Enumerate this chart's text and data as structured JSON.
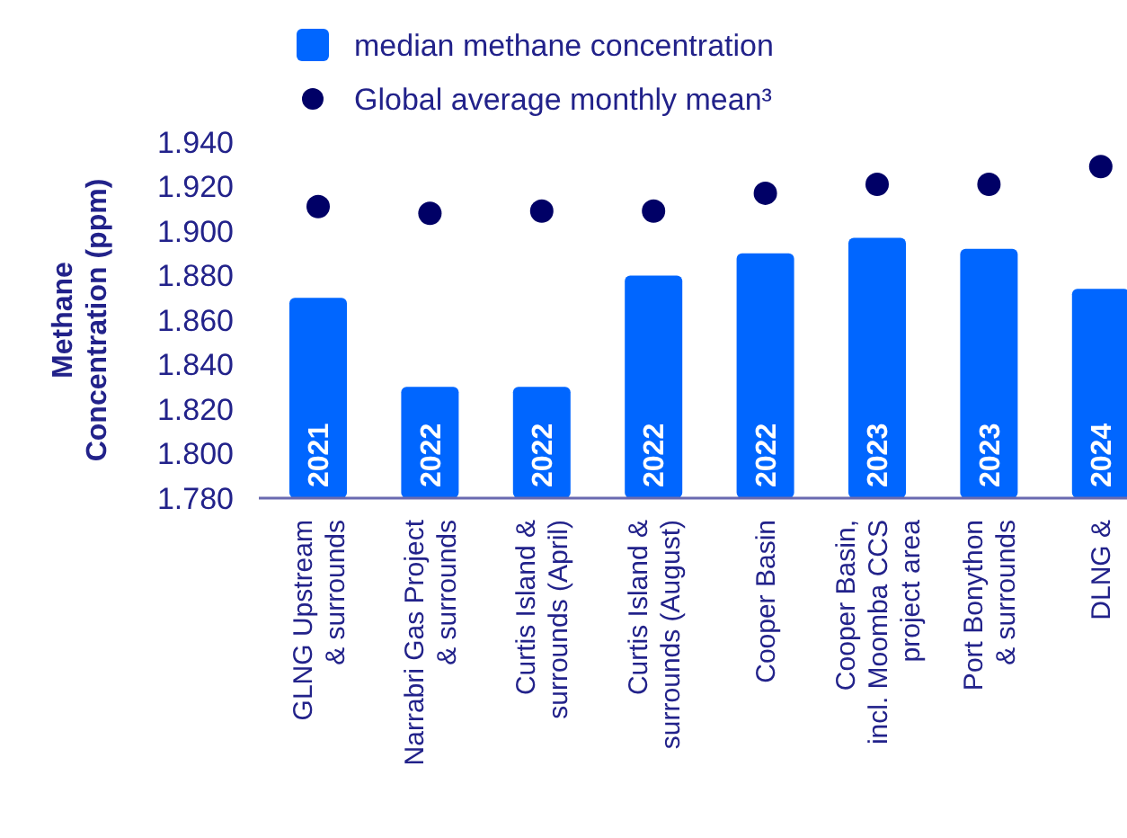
{
  "chart_data": {
    "type": "bar",
    "ylabel": "Methane\nConcentration (ppm)",
    "categories": [
      "GLNG Upstream\n& surrounds",
      "Narrabri Gas Project\n& surrounds",
      "Curtis Island &\nsurrounds (April)",
      "Curtis Island &\nsurrounds (August)",
      "Cooper Basin",
      "Cooper Basin,\nincl. Moomba CCS\nproject area",
      "Port Bonython\n& surrounds",
      "DLNG &"
    ],
    "series": [
      {
        "name": "median methane concentration",
        "color": "#0066ff",
        "values": [
          1.87,
          1.83,
          1.83,
          1.88,
          1.89,
          1.897,
          1.892,
          1.874
        ]
      },
      {
        "name": "Global average monthly mean³",
        "type": "scatter",
        "color": "#000066",
        "marker": "circle",
        "values": [
          1.911,
          1.908,
          1.909,
          1.909,
          1.917,
          1.921,
          1.921,
          1.929
        ]
      }
    ],
    "ylim": [
      1.78,
      1.94
    ],
    "yticks": [
      {
        "value": 1.78,
        "label": "1.780"
      },
      {
        "value": 1.8,
        "label": "1.800"
      },
      {
        "value": 1.82,
        "label": "1.820"
      },
      {
        "value": 1.84,
        "label": "1.840"
      },
      {
        "value": 1.86,
        "label": "1.860"
      },
      {
        "value": 1.88,
        "label": "1.880"
      },
      {
        "value": 1.9,
        "label": "1.900"
      },
      {
        "value": 1.92,
        "label": "1.920"
      },
      {
        "value": 1.94,
        "label": "1.940"
      }
    ],
    "annotations": [
      {
        "text": "2021",
        "x": "GLNG Upstream\n& surrounds",
        "y": 1.78
      },
      {
        "text": "2022",
        "x": "Narrabri Gas Project\n& surrounds",
        "y": 1.78
      },
      {
        "text": "2022",
        "x": "Curtis Island &\nsurrounds (April)",
        "y": 1.78
      },
      {
        "text": "2022",
        "x": "Curtis Island &\nsurrounds (August)",
        "y": 1.78
      },
      {
        "text": "2022",
        "x": "Cooper Basin",
        "y": 1.78
      },
      {
        "text": "2023",
        "x": "Cooper Basin,\nincl. Moomba CCS\nproject area",
        "y": 1.78
      },
      {
        "text": "2023",
        "x": "Port Bonython\n& surrounds",
        "y": 1.78
      },
      {
        "text": "2024",
        "x": "DLNG &",
        "y": 1.78
      }
    ],
    "grid": false,
    "legend": "top"
  }
}
